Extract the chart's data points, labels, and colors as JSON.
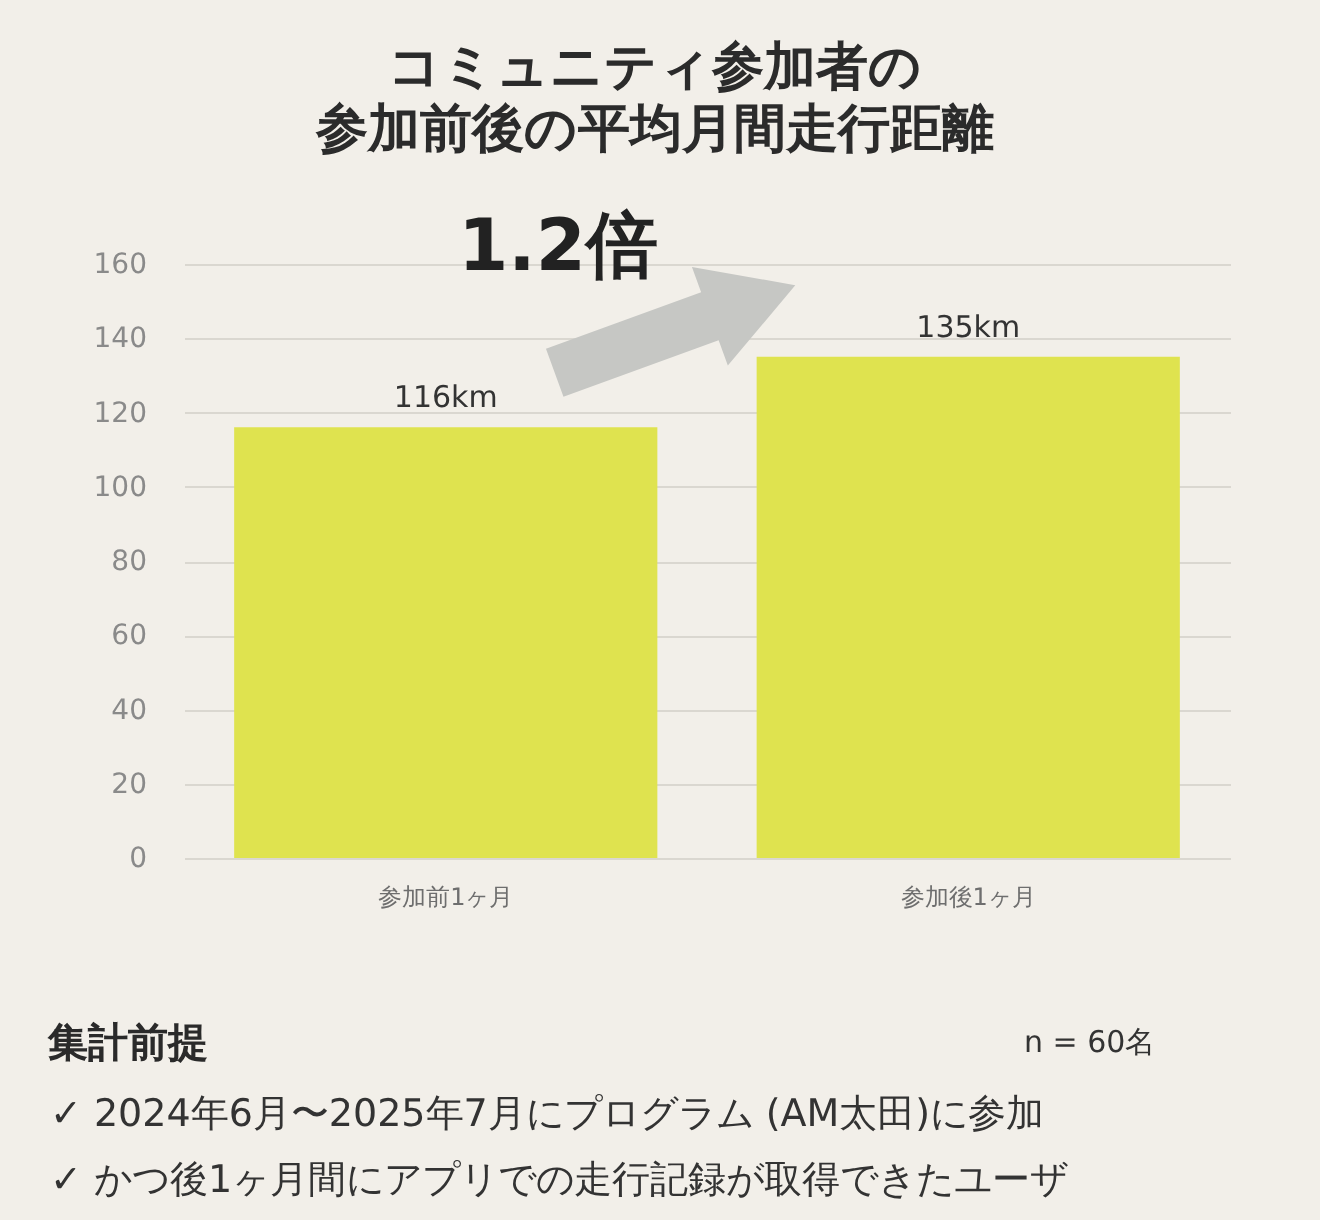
{
  "chart_data": {
    "type": "bar",
    "title": "コミュニティ参加者の参加前後の平均月間走行距離",
    "categories": [
      "参加前1ヶ月",
      "参加後1ヶ月"
    ],
    "values": [
      116,
      135
    ],
    "color": "#dfe34f",
    "value_labels": [
      "116km",
      "135km"
    ],
    "ylim": [
      0,
      160
    ],
    "yticks": [
      0,
      20,
      40,
      60,
      80,
      100,
      120,
      140,
      160
    ],
    "grid": "y",
    "annotations": [
      "1.2倍",
      "集計前提",
      "n = 60名",
      "✓ 2024年6月〜2025年7月にプログラム (AM太田)に参加",
      "✓ かつ後1ヶ月間にアプリでの走行記録が取得できたユーザ"
    ]
  }
}
